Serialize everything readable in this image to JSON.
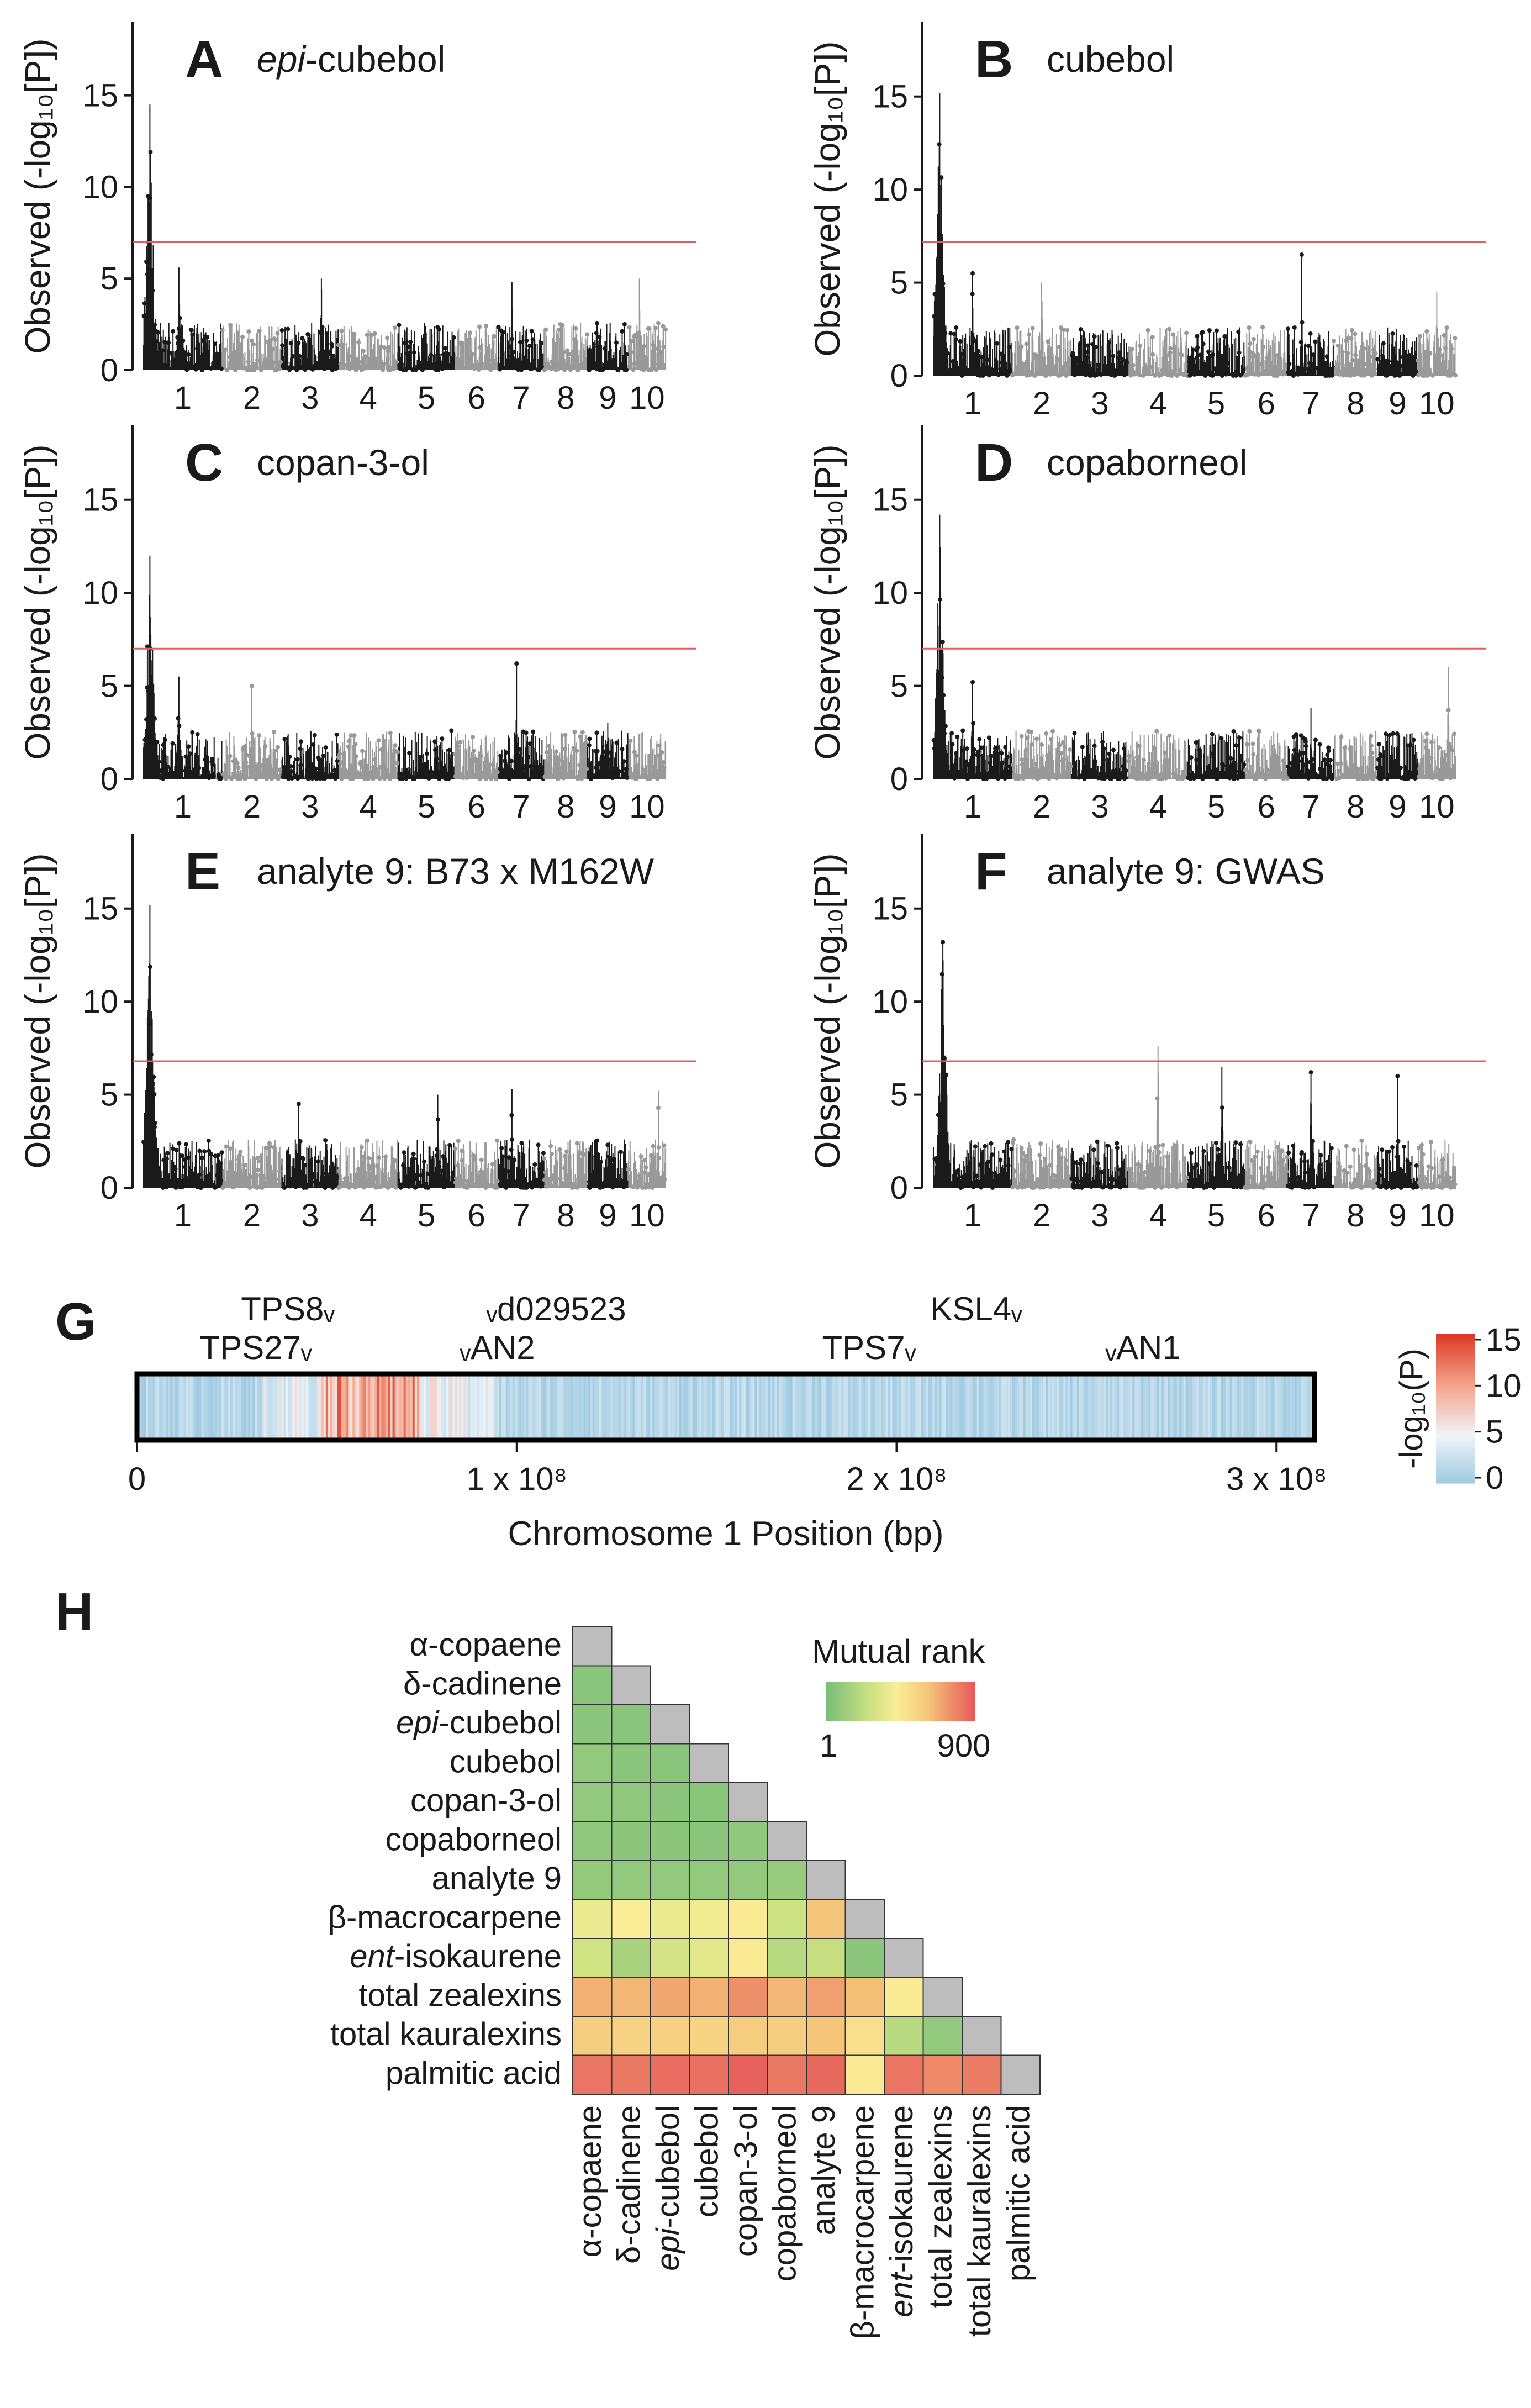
{
  "figure": {
    "axis_label_y": "Observed (-log₁₀[P])",
    "threshold_color": "#e06060",
    "dark_color": "#1a1a1a",
    "light_color": "#999999"
  },
  "chart_data": [
    {
      "id": "A",
      "type": "scatter",
      "title": "epi-cubebol",
      "ylabel": "Observed (-log10[P])",
      "ylim": [
        0,
        19
      ],
      "yticks": [
        "0",
        "5",
        "10",
        "15"
      ],
      "chromosomes": [
        "1",
        "2",
        "3",
        "4",
        "5",
        "6",
        "7",
        "8",
        "9",
        "10"
      ],
      "threshold": 7.0,
      "peaks": [
        {
          "chr": 1,
          "pos": 0.08,
          "height": 14.5
        },
        {
          "chr": 1,
          "pos": 0.45,
          "height": 5.6
        },
        {
          "chr": 3,
          "pos": 0.7,
          "height": 5.0
        },
        {
          "chr": 7,
          "pos": 0.3,
          "height": 4.8
        },
        {
          "chr": 10,
          "pos": 0.3,
          "height": 5.0
        }
      ]
    },
    {
      "id": "B",
      "type": "scatter",
      "title": "cubebol",
      "ylabel": "Observed (-log10[P])",
      "ylim": [
        0,
        19
      ],
      "yticks": [
        "0",
        "5",
        "10",
        "15"
      ],
      "chromosomes": [
        "1",
        "2",
        "3",
        "4",
        "5",
        "6",
        "7",
        "8",
        "9",
        "10"
      ],
      "threshold": 7.2,
      "peaks": [
        {
          "chr": 1,
          "pos": 0.08,
          "height": 15.2
        },
        {
          "chr": 1,
          "pos": 0.5,
          "height": 5.5
        },
        {
          "chr": 2,
          "pos": 0.5,
          "height": 5.0
        },
        {
          "chr": 7,
          "pos": 0.3,
          "height": 6.5
        },
        {
          "chr": 10,
          "pos": 0.5,
          "height": 4.5
        }
      ]
    },
    {
      "id": "C",
      "type": "scatter",
      "title": "copan-3-ol",
      "ylabel": "Observed (-log10[P])",
      "ylim": [
        0,
        19
      ],
      "yticks": [
        "0",
        "5",
        "10",
        "15"
      ],
      "chromosomes": [
        "1",
        "2",
        "3",
        "4",
        "5",
        "6",
        "7",
        "8",
        "9",
        "10"
      ],
      "threshold": 7.0,
      "peaks": [
        {
          "chr": 1,
          "pos": 0.08,
          "height": 12.0
        },
        {
          "chr": 1,
          "pos": 0.45,
          "height": 5.5
        },
        {
          "chr": 2,
          "pos": 0.5,
          "height": 5.0
        },
        {
          "chr": 7,
          "pos": 0.4,
          "height": 6.2
        },
        {
          "chr": 9,
          "pos": 0.5,
          "height": 3.0
        }
      ]
    },
    {
      "id": "D",
      "type": "scatter",
      "title": "copaborneol",
      "ylabel": "Observed (-log10[P])",
      "ylim": [
        0,
        19
      ],
      "yticks": [
        "0",
        "5",
        "10",
        "15"
      ],
      "chromosomes": [
        "1",
        "2",
        "3",
        "4",
        "5",
        "6",
        "7",
        "8",
        "9",
        "10"
      ],
      "threshold": 7.0,
      "peaks": [
        {
          "chr": 1,
          "pos": 0.08,
          "height": 14.2
        },
        {
          "chr": 1,
          "pos": 0.5,
          "height": 5.2
        },
        {
          "chr": 7,
          "pos": 0.5,
          "height": 3.8
        },
        {
          "chr": 10,
          "pos": 0.8,
          "height": 6.0
        }
      ]
    },
    {
      "id": "E",
      "type": "scatter",
      "title": "analyte 9: B73 x M162W",
      "ylabel": "Observed (-log10[P])",
      "ylim": [
        0,
        19
      ],
      "yticks": [
        "0",
        "5",
        "10",
        "15"
      ],
      "chromosomes": [
        "1",
        "2",
        "3",
        "4",
        "5",
        "6",
        "7",
        "8",
        "9",
        "10"
      ],
      "threshold": 6.8,
      "peaks": [
        {
          "chr": 1,
          "pos": 0.08,
          "height": 15.2
        },
        {
          "chr": 1,
          "pos": 0.1,
          "height": 9.5
        },
        {
          "chr": 3,
          "pos": 0.3,
          "height": 4.5
        },
        {
          "chr": 5,
          "pos": 0.7,
          "height": 5.0
        },
        {
          "chr": 7,
          "pos": 0.3,
          "height": 5.3
        },
        {
          "chr": 10,
          "pos": 0.8,
          "height": 5.2
        }
      ]
    },
    {
      "id": "F",
      "type": "scatter",
      "title": "analyte 9: GWAS",
      "ylabel": "Observed (-log10[P])",
      "ylim": [
        0,
        19
      ],
      "yticks": [
        "0",
        "5",
        "10",
        "15"
      ],
      "chromosomes": [
        "1",
        "2",
        "3",
        "4",
        "5",
        "6",
        "7",
        "8",
        "9",
        "10"
      ],
      "threshold": 6.8,
      "peaks": [
        {
          "chr": 1,
          "pos": 0.12,
          "height": 13.2
        },
        {
          "chr": 4,
          "pos": 0.5,
          "height": 7.6
        },
        {
          "chr": 5,
          "pos": 0.6,
          "height": 6.5
        },
        {
          "chr": 7,
          "pos": 0.5,
          "height": 6.2
        },
        {
          "chr": 9,
          "pos": 0.5,
          "height": 6.0
        }
      ]
    },
    {
      "id": "G",
      "type": "heatmap",
      "xlabel": "Chromosome 1 Position (bp)",
      "xlim": [
        0,
        310000000
      ],
      "xticks": [
        {
          "value": 0,
          "label": "0"
        },
        {
          "value": 100000000,
          "label": "1 x 10⁸"
        },
        {
          "value": 200000000,
          "label": "2 x 10⁸"
        },
        {
          "value": 300000000,
          "label": "3 x 10⁸"
        }
      ],
      "legend_title": "-log₁₀(P)",
      "legend_ticks": [
        "15",
        "10",
        "5",
        "0"
      ],
      "gene_labels": [
        {
          "label": "TPS8ᵥ",
          "pos": 52000000
        },
        {
          "label": "ᵥd029523",
          "pos": 92000000
        },
        {
          "label": "TPS27ᵥ",
          "pos": 46000000
        },
        {
          "label": "ᵥAN2",
          "pos": 85000000
        },
        {
          "label": "KSL4ᵥ",
          "pos": 233000000
        },
        {
          "label": "TPS7ᵥ",
          "pos": 205000000
        },
        {
          "label": "ᵥAN1",
          "pos": 255000000
        }
      ],
      "hot_region": [
        48000000,
        74000000
      ]
    },
    {
      "id": "H",
      "type": "heatmap",
      "legend_title": "Mutual rank",
      "legend_min": "1",
      "legend_max": "900",
      "labels": [
        "α-copaene",
        "δ-cadinene",
        "epi-cubebol",
        "cubebol",
        "copan-3-ol",
        "copaborneol",
        "analyte 9",
        "β-macrocarpene",
        "ent-isokaurene",
        "total zealexins",
        "total kauralexins",
        "palmitic acid"
      ],
      "matrix_lower": [
        [],
        [
          50
        ],
        [
          60,
          50
        ],
        [
          80,
          60,
          50
        ],
        [
          80,
          70,
          60,
          50
        ],
        [
          70,
          60,
          60,
          60,
          70
        ],
        [
          90,
          80,
          80,
          80,
          80,
          100
        ],
        [
          380,
          430,
          380,
          400,
          450,
          270,
          620
        ],
        [
          280,
          150,
          300,
          350,
          450,
          200,
          250,
          60
        ],
        [
          680,
          660,
          700,
          680,
          760,
          660,
          720,
          640,
          440
        ],
        [
          580,
          560,
          570,
          550,
          590,
          580,
          620,
          500,
          200,
          80
        ],
        [
          830,
          820,
          850,
          840,
          880,
          820,
          860,
          450,
          830,
          780,
          810
        ]
      ]
    }
  ]
}
